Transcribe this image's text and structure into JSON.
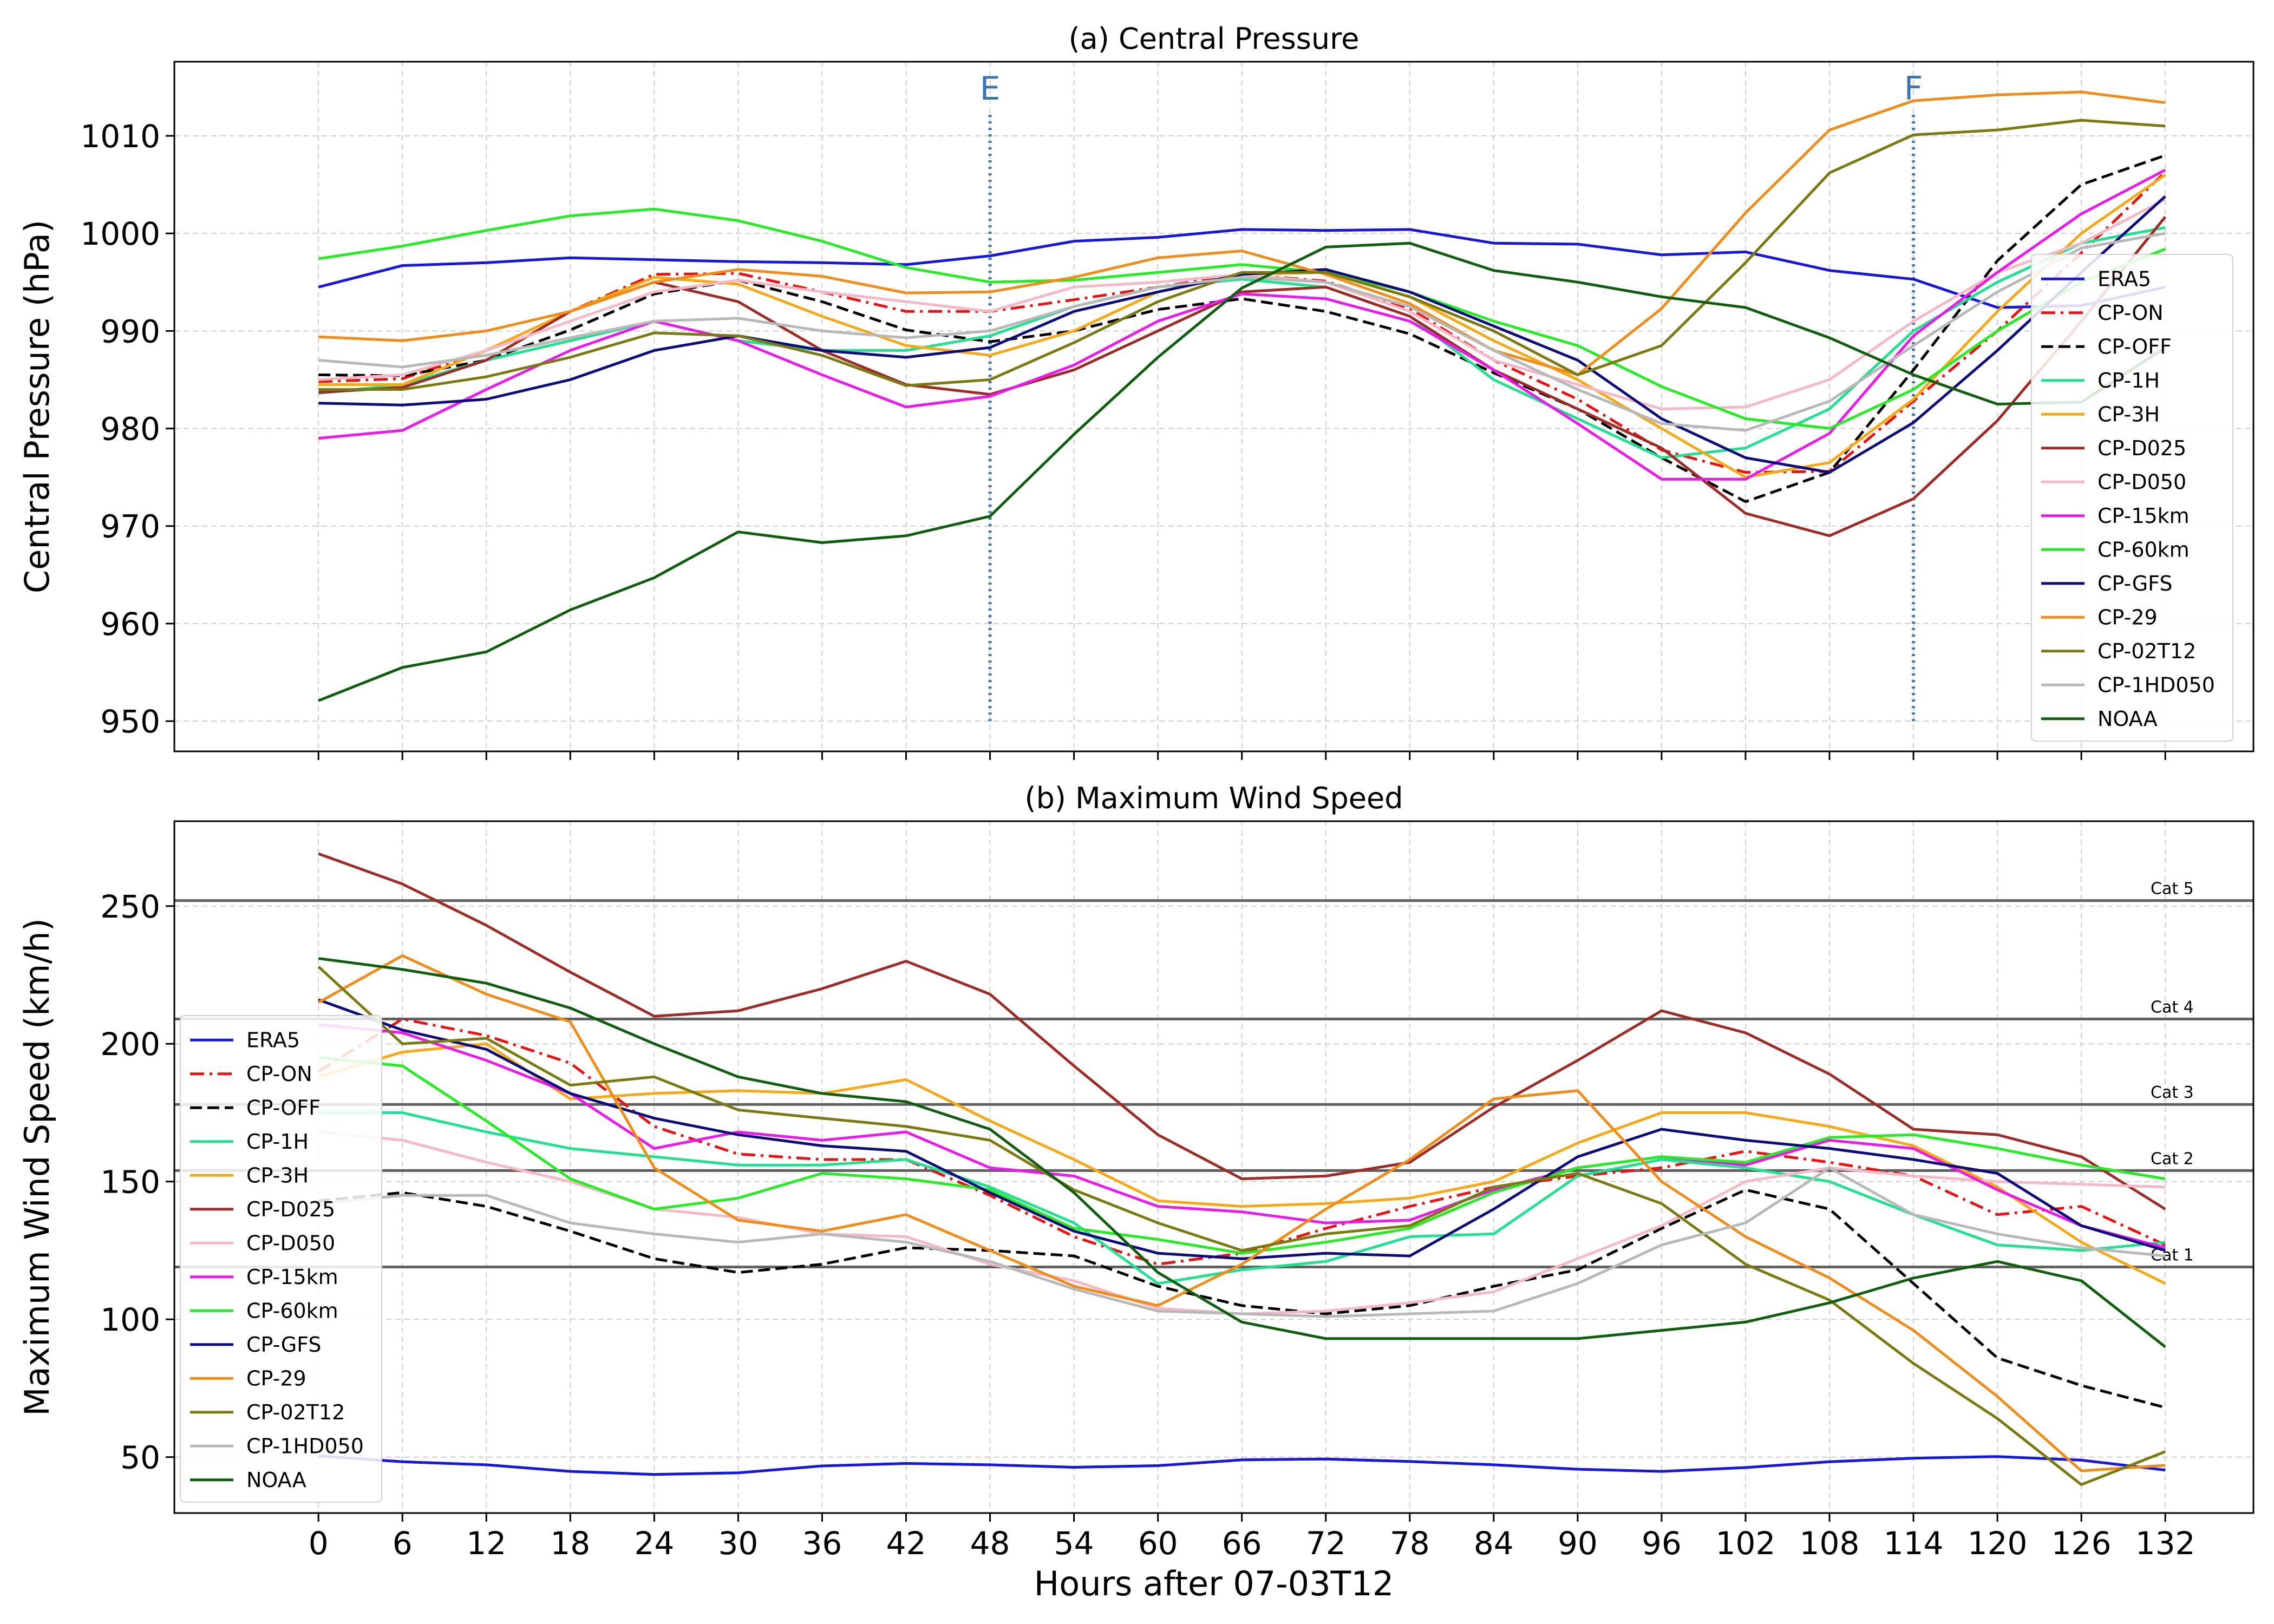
{
  "chart_data": [
    {
      "type": "line",
      "title": "(a) Central Pressure",
      "ylabel": "Central Pressure (hPa)",
      "xlabel": "",
      "ylim": [
        946.9,
        1017.6
      ],
      "xlim": [
        -10.3,
        138.3
      ],
      "x": [
        0,
        6,
        12,
        18,
        24,
        30,
        36,
        42,
        48,
        54,
        60,
        66,
        72,
        78,
        84,
        90,
        96,
        102,
        108,
        114,
        120,
        126,
        132
      ],
      "yticks": [
        950,
        960,
        970,
        980,
        990,
        1000,
        1010
      ],
      "grid": true,
      "legend_position": "right",
      "markers": [
        {
          "label": "E",
          "x": 48,
          "y_from": 950,
          "y_to": 1012.5,
          "color": "#3a76b0"
        },
        {
          "label": "F",
          "x": 114,
          "y_from": 950,
          "y_to": 1012.5,
          "color": "#3a76b0"
        }
      ],
      "series": [
        {
          "name": "ERA5",
          "color": "#1515e5",
          "dash": "solid",
          "values": [
            994.5,
            996.7,
            997.0,
            997.5,
            997.3,
            997.1,
            997.0,
            996.8,
            997.7,
            999.2,
            999.6,
            1000.4,
            1000.3,
            1000.4,
            999.0,
            998.9,
            997.8,
            998.1,
            996.2,
            995.3,
            992.4,
            992.6,
            994.5
          ]
        },
        {
          "name": "CP-ON",
          "color": "#ee1111",
          "dash": "dashdot",
          "values": [
            984.8,
            985.1,
            988.0,
            992.0,
            995.8,
            995.9,
            994.0,
            992.0,
            992.0,
            993.2,
            994.5,
            995.8,
            995.1,
            992.3,
            987.0,
            983.0,
            977.8,
            975.5,
            975.6,
            982.8,
            990.0,
            998.0,
            1006.3
          ]
        },
        {
          "name": "CP-OFF",
          "color": "#000000",
          "dash": "dashed",
          "values": [
            985.5,
            985.4,
            987.0,
            990.1,
            993.8,
            995.2,
            993.0,
            990.1,
            988.9,
            990.0,
            992.2,
            993.3,
            992.0,
            989.7,
            985.7,
            982.0,
            977.0,
            972.5,
            975.5,
            986.0,
            997.2,
            1005.0,
            1008.0
          ]
        },
        {
          "name": "CP-1H",
          "color": "#1de38f",
          "dash": "solid",
          "values": [
            983.6,
            984.5,
            987.0,
            989.0,
            991.0,
            989.0,
            988.0,
            988.0,
            989.5,
            992.5,
            994.5,
            995.3,
            994.5,
            991.5,
            985.0,
            981.0,
            977.0,
            978.0,
            982.0,
            990.0,
            995.0,
            999.0,
            1000.6
          ]
        },
        {
          "name": "CP-3H",
          "color": "#f7a812",
          "dash": "solid",
          "values": [
            984.5,
            984.5,
            988.0,
            992.0,
            995.5,
            994.8,
            991.5,
            988.5,
            987.5,
            990.0,
            994.0,
            995.8,
            996.0,
            993.5,
            989.0,
            985.0,
            980.0,
            975.0,
            976.5,
            983.0,
            992.0,
            1000.0,
            1006.0
          ]
        },
        {
          "name": "CP-D025",
          "color": "#9f2a26",
          "dash": "solid",
          "values": [
            983.7,
            984.2,
            987.0,
            992.0,
            995.0,
            993.0,
            988.0,
            984.5,
            983.5,
            986.0,
            990.0,
            994.0,
            994.5,
            991.5,
            986.0,
            982.0,
            978.0,
            971.3,
            969.0,
            972.8,
            980.8,
            991.0,
            1001.7
          ]
        },
        {
          "name": "CP-D050",
          "color": "#f7b8c6",
          "dash": "solid",
          "values": [
            985.0,
            985.5,
            988.0,
            991.0,
            994.0,
            995.2,
            994.0,
            993.0,
            992.0,
            994.5,
            995.0,
            995.8,
            995.0,
            992.0,
            987.0,
            984.5,
            982.0,
            982.2,
            985.0,
            991.0,
            996.0,
            999.0,
            1003.5
          ]
        },
        {
          "name": "CP-15km",
          "color": "#ee18ee",
          "dash": "solid",
          "values": [
            979.0,
            979.8,
            984.0,
            988.0,
            991.0,
            989.0,
            985.5,
            982.2,
            983.3,
            986.5,
            991.0,
            993.8,
            993.3,
            991.0,
            986.0,
            980.5,
            974.8,
            974.8,
            979.5,
            989.5,
            996.0,
            1002.0,
            1006.5
          ]
        },
        {
          "name": "CP-60km",
          "color": "#22ee22",
          "dash": "solid",
          "values": [
            997.4,
            998.7,
            1000.3,
            1001.8,
            1002.5,
            1001.3,
            999.2,
            996.5,
            995.0,
            995.2,
            996.0,
            996.8,
            996.0,
            994.0,
            991.0,
            988.5,
            984.3,
            981.0,
            980.0,
            984.0,
            990.0,
            995.0,
            998.4
          ]
        },
        {
          "name": "CP-GFS",
          "color": "#0c0c7e",
          "dash": "solid",
          "values": [
            982.6,
            982.4,
            983.0,
            985.0,
            988.0,
            989.5,
            988.0,
            987.3,
            988.3,
            992.0,
            994.0,
            995.8,
            996.3,
            994.0,
            990.5,
            987.0,
            981.0,
            977.0,
            975.5,
            980.6,
            988.0,
            996.0,
            1003.8
          ]
        },
        {
          "name": "CP-29",
          "color": "#f28c16",
          "dash": "solid",
          "values": [
            989.4,
            989.0,
            990.0,
            992.0,
            995.0,
            996.3,
            995.6,
            993.9,
            994.0,
            995.5,
            997.5,
            998.2,
            995.8,
            992.8,
            988.0,
            985.5,
            992.3,
            1002.1,
            1010.6,
            1013.6,
            1014.2,
            1014.5,
            1013.4
          ]
        },
        {
          "name": "CP-02T12",
          "color": "#7a7a0f",
          "dash": "solid",
          "values": [
            984.0,
            984.0,
            985.3,
            987.3,
            989.8,
            989.5,
            987.5,
            984.4,
            985.0,
            988.8,
            993.0,
            996.0,
            996.0,
            993.5,
            990.0,
            985.5,
            988.5,
            997.0,
            1006.2,
            1010.1,
            1010.6,
            1011.6,
            1011.0
          ]
        },
        {
          "name": "CP-1HD050",
          "color": "#b8b8b8",
          "dash": "solid",
          "values": [
            987.0,
            986.3,
            987.5,
            989.3,
            991.0,
            991.3,
            990.0,
            989.3,
            990.0,
            992.5,
            994.5,
            995.5,
            995.0,
            992.5,
            988.0,
            984.0,
            980.5,
            979.8,
            982.8,
            988.5,
            994.0,
            998.5,
            1000.0
          ]
        },
        {
          "name": "NOAA",
          "color": "#0d5e0d",
          "dash": "solid",
          "values": [
            952.1,
            955.5,
            957.1,
            961.4,
            964.7,
            969.4,
            968.3,
            969.0,
            971.0,
            979.4,
            987.3,
            994.4,
            998.6,
            999.0,
            996.2,
            995.0,
            993.5,
            992.4,
            989.3,
            985.5,
            982.5,
            982.7,
            988.3
          ]
        }
      ]
    },
    {
      "type": "line",
      "title": "(b) Maximum Wind Speed",
      "ylabel": "Maximum Wind Speed (km/h)",
      "xlabel": "Hours after 07-03T12",
      "ylim": [
        29.7,
        280.8
      ],
      "xlim": [
        -10.3,
        138.3
      ],
      "x": [
        0,
        6,
        12,
        18,
        24,
        30,
        36,
        42,
        48,
        54,
        60,
        66,
        72,
        78,
        84,
        90,
        96,
        102,
        108,
        114,
        120,
        126,
        132
      ],
      "yticks": [
        50,
        100,
        150,
        200,
        250
      ],
      "grid": true,
      "legend_position": "left",
      "category_lines": [
        {
          "label": "Cat 5",
          "y": 252
        },
        {
          "label": "Cat 4",
          "y": 209
        },
        {
          "label": "Cat 3",
          "y": 178
        },
        {
          "label": "Cat 2",
          "y": 154
        },
        {
          "label": "Cat 1",
          "y": 119
        }
      ],
      "series": [
        {
          "name": "ERA5",
          "color": "#1515e5",
          "dash": "solid",
          "values": [
            50.4,
            48.3,
            47.2,
            44.8,
            43.7,
            44.3,
            46.8,
            47.7,
            47.2,
            46.3,
            46.9,
            49.0,
            49.3,
            48.4,
            47.2,
            45.6,
            44.8,
            46.2,
            48.3,
            49.6,
            50.2,
            48.9,
            45.3
          ]
        },
        {
          "name": "CP-ON",
          "color": "#ee1111",
          "dash": "dashdot",
          "values": [
            190.0,
            209.0,
            203.0,
            193.0,
            170.0,
            160.0,
            158.0,
            158.0,
            145.0,
            130.0,
            120.0,
            124.0,
            133.0,
            141.0,
            148.0,
            152.0,
            155.0,
            161.0,
            157.0,
            152.0,
            138.0,
            141.0,
            127.0
          ]
        },
        {
          "name": "CP-OFF",
          "color": "#000000",
          "dash": "dashed",
          "values": [
            143.0,
            146.0,
            141.0,
            132.0,
            122.0,
            117.0,
            120.0,
            126.0,
            125.0,
            123.0,
            112.0,
            105.0,
            102.0,
            105.0,
            112.0,
            118.0,
            133.0,
            147.0,
            140.0,
            113.0,
            86.0,
            76.0,
            68.0
          ]
        },
        {
          "name": "CP-1H",
          "color": "#1de38f",
          "dash": "solid",
          "values": [
            175.0,
            175.0,
            168.0,
            162.0,
            159.0,
            156.0,
            156.0,
            158.0,
            148.0,
            135.0,
            113.0,
            118.0,
            121.0,
            130.0,
            131.0,
            152.0,
            158.0,
            155.0,
            150.0,
            138.0,
            127.0,
            125.0,
            128.0
          ]
        },
        {
          "name": "CP-3H",
          "color": "#f7a812",
          "dash": "solid",
          "values": [
            188.0,
            197.0,
            200.0,
            180.0,
            182.0,
            183.0,
            182.0,
            187.0,
            172.0,
            158.0,
            143.0,
            141.0,
            142.0,
            144.0,
            150.0,
            164.0,
            175.0,
            175.0,
            170.0,
            163.0,
            148.0,
            128.0,
            113.0
          ]
        },
        {
          "name": "CP-D025",
          "color": "#9f2a26",
          "dash": "solid",
          "values": [
            269.0,
            258.0,
            243.0,
            226.0,
            210.0,
            212.0,
            220.0,
            230.0,
            218.0,
            192.0,
            167.0,
            151.0,
            152.0,
            157.0,
            177.0,
            194.0,
            212.0,
            204.0,
            189.0,
            169.0,
            167.0,
            159.0,
            140.0
          ]
        },
        {
          "name": "CP-D050",
          "color": "#f7b8c6",
          "dash": "solid",
          "values": [
            168.0,
            165.0,
            157.0,
            150.0,
            140.0,
            137.0,
            131.0,
            130.0,
            120.0,
            114.0,
            104.0,
            102.0,
            103.0,
            106.0,
            110.0,
            122.0,
            134.0,
            150.0,
            155.0,
            152.0,
            150.0,
            149.0,
            148.0
          ]
        },
        {
          "name": "CP-15km",
          "color": "#ee18ee",
          "dash": "solid",
          "values": [
            207.0,
            204.0,
            194.0,
            182.0,
            162.0,
            168.0,
            165.0,
            168.0,
            155.0,
            152.0,
            141.0,
            139.0,
            135.0,
            136.0,
            147.0,
            155.0,
            159.0,
            156.0,
            165.0,
            162.0,
            147.0,
            134.0,
            126.0
          ]
        },
        {
          "name": "CP-60km",
          "color": "#22ee22",
          "dash": "solid",
          "values": [
            195.0,
            192.0,
            172.0,
            151.0,
            140.0,
            144.0,
            153.0,
            151.0,
            147.0,
            133.0,
            129.0,
            124.0,
            128.0,
            133.0,
            146.0,
            155.0,
            159.0,
            157.0,
            166.0,
            167.0,
            162.0,
            156.0,
            151.0
          ]
        },
        {
          "name": "CP-GFS",
          "color": "#0c0c7e",
          "dash": "solid",
          "values": [
            216.0,
            205.0,
            198.0,
            182.0,
            173.0,
            167.0,
            163.0,
            161.0,
            146.0,
            132.0,
            124.0,
            122.0,
            124.0,
            123.0,
            140.0,
            159.0,
            169.0,
            165.0,
            162.0,
            158.0,
            153.0,
            134.0,
            125.0
          ]
        },
        {
          "name": "CP-29",
          "color": "#f28c16",
          "dash": "solid",
          "values": [
            215.0,
            232.0,
            218.0,
            208.0,
            155.0,
            136.0,
            132.0,
            138.0,
            125.0,
            112.0,
            105.0,
            120.0,
            140.0,
            158.0,
            180.0,
            183.0,
            150.0,
            130.0,
            115.0,
            96.0,
            72.0,
            45.0,
            47.0
          ]
        },
        {
          "name": "CP-02T12",
          "color": "#7a7a0f",
          "dash": "solid",
          "values": [
            228.0,
            200.0,
            202.0,
            185.0,
            188.0,
            176.0,
            173.0,
            170.0,
            165.0,
            147.0,
            135.0,
            125.0,
            131.0,
            134.0,
            148.0,
            153.0,
            142.0,
            120.0,
            107.0,
            84.0,
            64.0,
            40.0,
            52.0
          ]
        },
        {
          "name": "CP-1HD050",
          "color": "#b8b8b8",
          "dash": "solid",
          "values": [
            142.0,
            145.0,
            145.0,
            135.0,
            131.0,
            128.0,
            131.0,
            128.0,
            121.0,
            111.0,
            103.0,
            102.0,
            101.0,
            102.0,
            103.0,
            113.0,
            127.0,
            135.0,
            155.0,
            138.0,
            131.0,
            126.0,
            123.0
          ]
        },
        {
          "name": "NOAA",
          "color": "#0d5e0d",
          "dash": "solid",
          "values": [
            231.0,
            227.0,
            222.0,
            213.0,
            200.0,
            188.0,
            182.0,
            179.0,
            169.0,
            146.0,
            117.0,
            99.0,
            93.0,
            93.0,
            93.0,
            93.0,
            96.0,
            99.0,
            106.0,
            115.0,
            121.0,
            114.0,
            90.0
          ]
        }
      ]
    }
  ]
}
